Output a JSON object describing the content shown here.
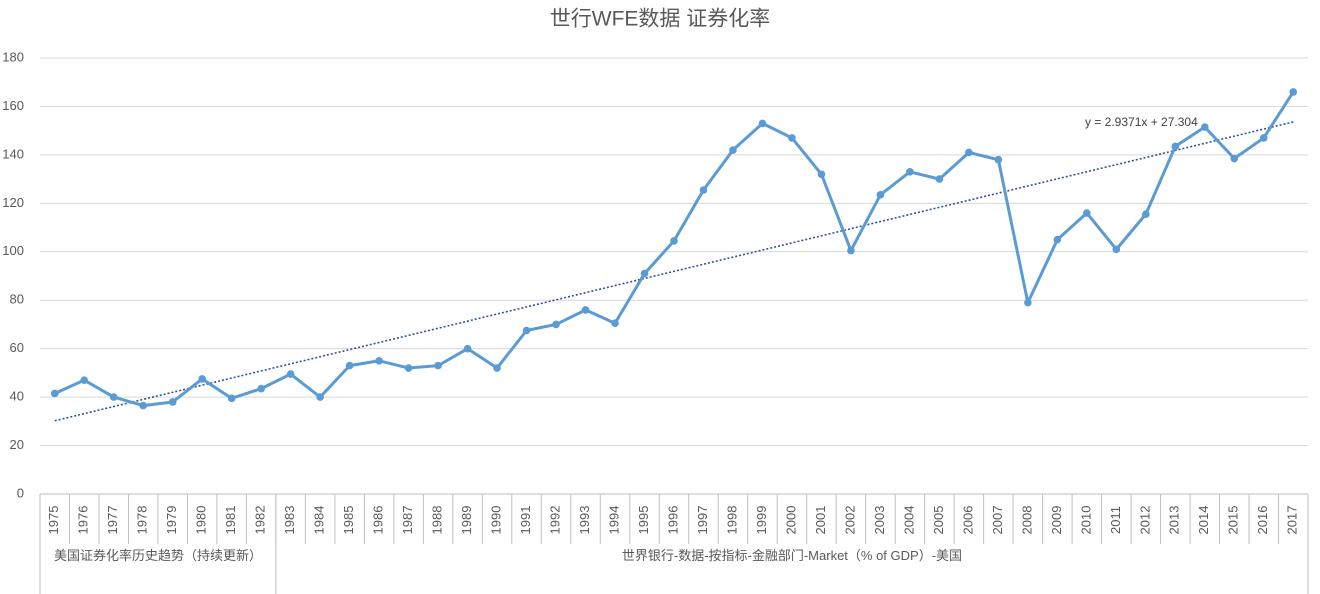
{
  "chart_data": {
    "type": "line",
    "title": "世行WFE数据 证券化率",
    "category_groups": [
      {
        "label": "美国证券化率历史趋势（持续更新）",
        "categories": [
          "1975",
          "1976",
          "1977",
          "1978",
          "1979",
          "1980",
          "1981",
          "1982"
        ]
      },
      {
        "label": "世界银行-数据-按指标-金融部门-Market（% of GDP）-美国",
        "categories": [
          "1983",
          "1984",
          "1985",
          "1986",
          "1987",
          "1988",
          "1989",
          "1990",
          "1991",
          "1992",
          "1993",
          "1994",
          "1995",
          "1996",
          "1997",
          "1998",
          "1999",
          "2000",
          "2001",
          "2002",
          "2003",
          "2004",
          "2005",
          "2006",
          "2007",
          "2008",
          "2009",
          "2010",
          "2011",
          "2012",
          "2013",
          "2014",
          "2015",
          "2016",
          "2017"
        ]
      }
    ],
    "series": [
      {
        "color": "#5b9bd5",
        "values": [
          41.5,
          47,
          40,
          36.5,
          38,
          47.5,
          39.5,
          43.5,
          49.5,
          40,
          53,
          55,
          52,
          53,
          60,
          52,
          67.5,
          70,
          76,
          70.5,
          91,
          104.5,
          125.5,
          142,
          153,
          147,
          132,
          100.5,
          123.5,
          133,
          130,
          141,
          138,
          79,
          105,
          116,
          101,
          115.5,
          143.5,
          151.5,
          138.5,
          147,
          166
        ]
      }
    ],
    "trendline": {
      "label": "y = 2.9371x + 27.304",
      "slope": 2.9371,
      "intercept": 27.304,
      "color": "#2f5597"
    },
    "ylim": [
      0,
      180
    ],
    "yticks": [
      0,
      20,
      40,
      60,
      80,
      100,
      120,
      140,
      160,
      180
    ],
    "grid": true
  }
}
